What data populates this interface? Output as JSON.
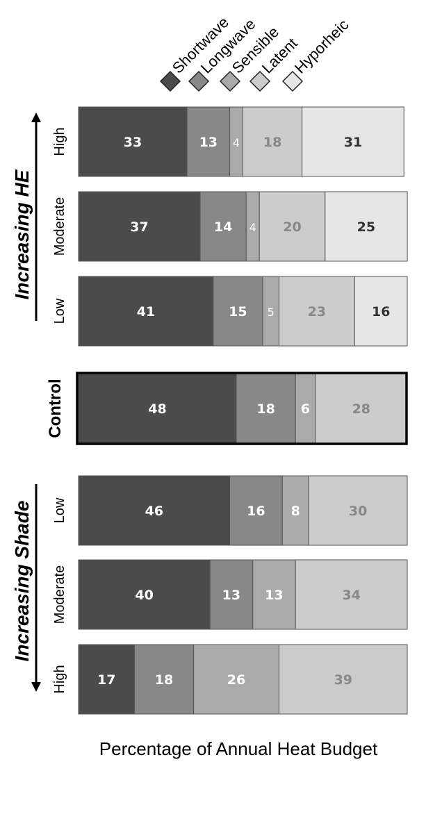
{
  "chart_data": {
    "type": "bar",
    "orientation": "horizontal",
    "stacked": true,
    "xlabel": "Percentage of Annual Heat Budget",
    "legend_position": "top",
    "series": [
      {
        "name": "Shortwave",
        "color": "#4b4b4b",
        "text_color": "#ffffff"
      },
      {
        "name": "Longwave",
        "color": "#888888",
        "text_color": "#ffffff"
      },
      {
        "name": "Sensible",
        "color": "#aaaaaa",
        "text_color": "#ffffff"
      },
      {
        "name": "Latent",
        "color": "#cccccc",
        "text_color": "#888888"
      },
      {
        "name": "Hyporheic",
        "color": "#e6e6e6",
        "text_color": "#333333"
      }
    ],
    "groups": [
      {
        "label": "Increasing HE",
        "arrow": "up",
        "rows": [
          {
            "label": "High",
            "values": [
              33,
              13,
              4,
              18,
              31
            ]
          },
          {
            "label": "Moderate",
            "values": [
              37,
              14,
              4,
              20,
              25
            ]
          },
          {
            "label": "Low",
            "values": [
              41,
              15,
              5,
              23,
              16
            ]
          }
        ]
      },
      {
        "label": "",
        "rows": [
          {
            "label": "Control",
            "values": [
              48,
              18,
              6,
              28,
              0
            ],
            "emphasis": true
          }
        ]
      },
      {
        "label": "Increasing Shade",
        "arrow": "down",
        "rows": [
          {
            "label": "Low",
            "values": [
              46,
              16,
              8,
              30,
              0
            ]
          },
          {
            "label": "Moderate",
            "values": [
              40,
              13,
              13,
              34,
              0
            ]
          },
          {
            "label": "High",
            "values": [
              17,
              18,
              26,
              39,
              0
            ]
          }
        ]
      }
    ]
  }
}
